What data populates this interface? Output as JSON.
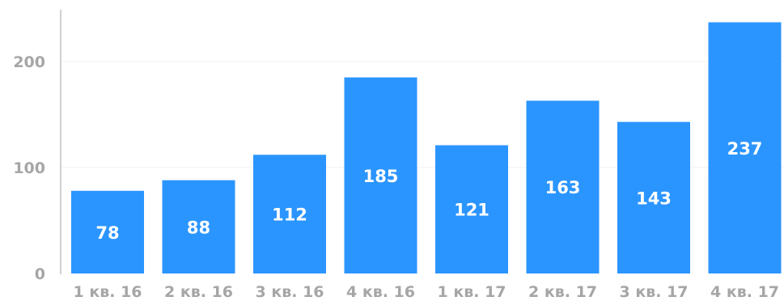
{
  "chart_data": {
    "type": "bar",
    "categories": [
      "1 кв. 16",
      "2 кв. 16",
      "3 кв. 16",
      "4 кв. 16",
      "1 кв. 17",
      "2 кв. 17",
      "3 кв. 17",
      "4 кв. 17"
    ],
    "values": [
      78,
      88,
      112,
      185,
      121,
      163,
      143,
      237
    ],
    "yticks": [
      0,
      100,
      200
    ],
    "ylim": [
      0,
      250
    ],
    "grid": true,
    "bar_color": "#2b95ff",
    "label_color": "#ffffff",
    "tick_color": "#a6a6a6"
  }
}
